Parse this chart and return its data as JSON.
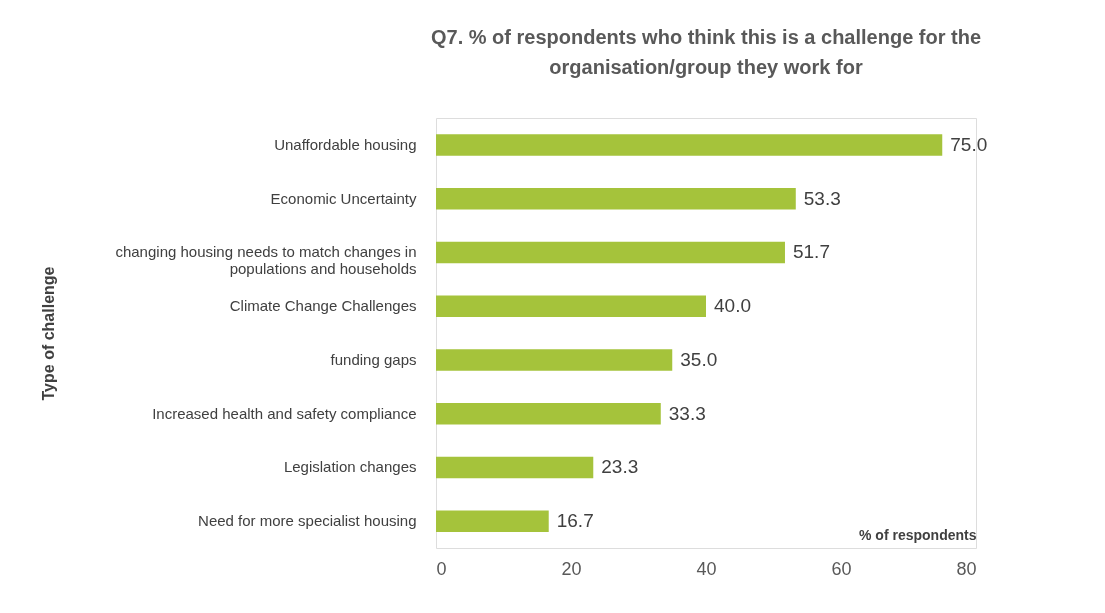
{
  "chart_data": {
    "type": "bar",
    "orientation": "horizontal",
    "title": "Q7. % of respondents who think this is a challenge for the organisation/group they work for",
    "xlabel": "% of respondents",
    "ylabel": "Type of challenge",
    "categories": [
      "Unaffordable housing",
      "Economic Uncertainty",
      "changing housing needs to match changes in populations and households",
      "Climate Change Challenges",
      "funding gaps",
      "Increased health and safety compliance",
      "Legislation changes",
      "Need for more specialist housing"
    ],
    "values": [
      75.0,
      53.3,
      51.7,
      40.0,
      35.0,
      33.3,
      23.3,
      16.7
    ],
    "value_labels": [
      "75.0",
      "53.3",
      "51.7",
      "40.0",
      "35.0",
      "33.3",
      "23.3",
      "16.7"
    ],
    "color": "#a5c33b",
    "xlim": [
      0,
      80
    ],
    "xticks": [
      0,
      20,
      40,
      60,
      80
    ],
    "grid": false
  }
}
